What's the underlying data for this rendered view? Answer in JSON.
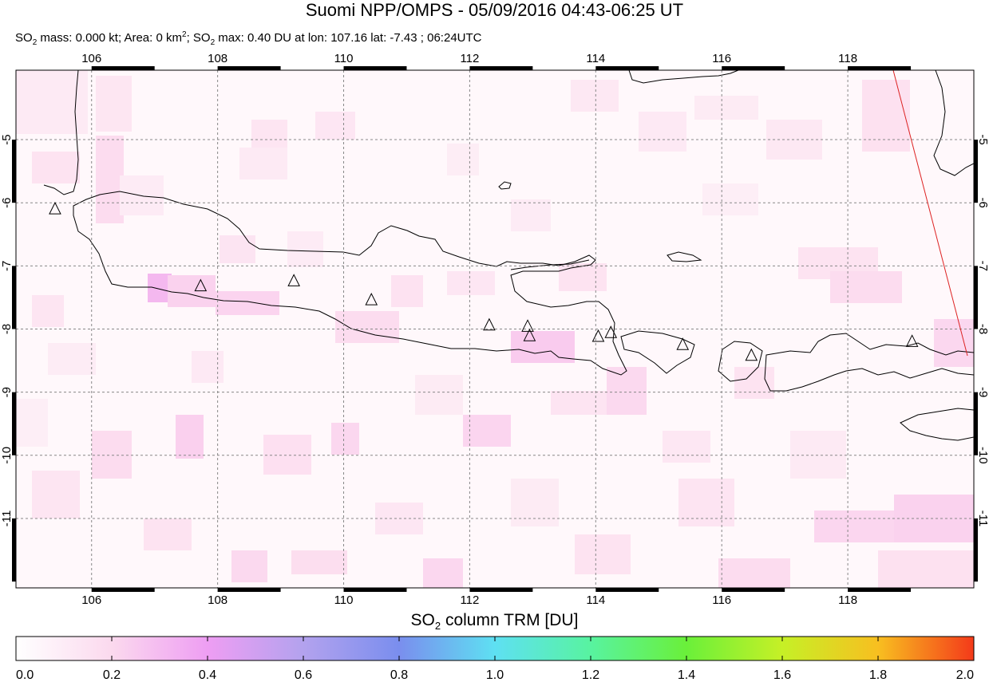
{
  "header": {
    "title": "Suomi NPP/OMPS - 05/09/2016 04:43-06:25 UT",
    "subtitle": {
      "mass_prefix": "SO",
      "mass_sub": "2",
      "mass_text": " mass: 0.000 kt; Area: 0 km",
      "area_sup": "2",
      "max_prefix": "; SO",
      "max_sub": "2",
      "max_text": " max: 0.40 DU at lon: 107.16 lat: -7.43 ; 06:24UTC"
    }
  },
  "map": {
    "lon_range": [
      104.8,
      120.0
    ],
    "lat_range": [
      -12.1,
      -3.9
    ],
    "lon_ticks": [
      "106",
      "108",
      "110",
      "112",
      "114",
      "116",
      "118"
    ],
    "lon_tick_values": [
      106,
      108,
      110,
      112,
      114,
      116,
      118
    ],
    "lat_ticks": [
      "-5",
      "-6",
      "-7",
      "-8",
      "-9",
      "-10",
      "-11"
    ],
    "lat_tick_values": [
      -5,
      -6,
      -7,
      -8,
      -9,
      -10,
      -11
    ],
    "gridlines": "dashed",
    "volcanoes": [
      {
        "lon": 105.42,
        "lat": -6.1
      },
      {
        "lon": 107.73,
        "lat": -7.32
      },
      {
        "lon": 109.21,
        "lat": -7.24
      },
      {
        "lon": 110.44,
        "lat": -7.54
      },
      {
        "lon": 112.31,
        "lat": -7.94
      },
      {
        "lon": 112.92,
        "lat": -7.96
      },
      {
        "lon": 112.95,
        "lat": -8.11
      },
      {
        "lon": 114.04,
        "lat": -8.12
      },
      {
        "lon": 114.24,
        "lat": -8.06
      },
      {
        "lon": 115.38,
        "lat": -8.25
      },
      {
        "lon": 116.47,
        "lat": -8.42
      },
      {
        "lon": 119.02,
        "lat": -8.2
      }
    ],
    "orbit_edge_color": "#dd2222",
    "coast_color": "#000000"
  },
  "colorbar": {
    "title_prefix": "SO",
    "title_sub": "2",
    "title_suffix": " column TRM [DU]",
    "ticks": [
      "0.0",
      "0.2",
      "0.4",
      "0.6",
      "0.8",
      "1.0",
      "1.2",
      "1.4",
      "1.6",
      "1.8",
      "2.0"
    ],
    "tick_values": [
      0.0,
      0.2,
      0.4,
      0.6,
      0.8,
      1.0,
      1.2,
      1.4,
      1.6,
      1.8,
      2.0
    ],
    "colors": [
      "#ffffff",
      "#fbd9ee",
      "#ee9ef3",
      "#b3a2ee",
      "#7a8eee",
      "#5ee0f2",
      "#58f3a0",
      "#6af03a",
      "#c6f026",
      "#f8bf20",
      "#f43a1a"
    ]
  }
}
